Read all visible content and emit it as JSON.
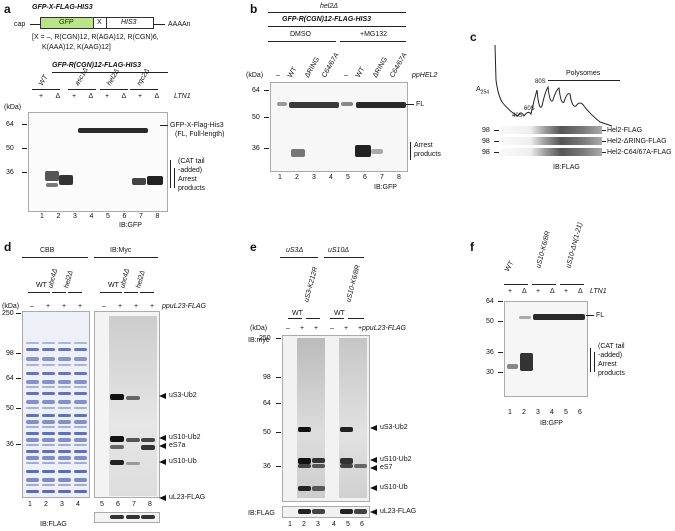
{
  "panels": {
    "a": {
      "letter": "a",
      "construct_title": "GFP-X-FLAG-HIS3",
      "cap": "cap",
      "gfp": "GFP",
      "x": "X",
      "his3": "HIS3",
      "polyA": "AAAAn",
      "x_def1": "[X = –, R(CGN)12, R(AGA)12, R(CGN)6,",
      "x_def2": "K(AAA)12, K(AAG)12]",
      "blot_title": "GFP-R(CGN)12-FLAG-HIS3",
      "strains": [
        "WT",
        "asc1Δ",
        "hel2Δ",
        "rqc2Δ"
      ],
      "ltn1_label": "LTN1",
      "ltn1_signs": [
        "+",
        "Δ",
        "+",
        "Δ",
        "+",
        "Δ",
        "+",
        "Δ"
      ],
      "kda": "(kDa)",
      "markers": [
        "64",
        "50",
        "36"
      ],
      "fl_label1": "GFP-X-Flag-His3",
      "fl_label2": "(FL, Full-length)",
      "cat_label1": "(CAT tail",
      "cat_label2": "-added)",
      "arrest1": "Arrest",
      "arrest2": "products",
      "lanes": [
        "1",
        "2",
        "3",
        "4",
        "5",
        "6",
        "7",
        "8"
      ],
      "ib": "IB:GFP"
    },
    "b": {
      "letter": "b",
      "strain": "hel2Δ",
      "blot_title": "GFP-R(CGN)12-FLAG-HIS3",
      "dmso": "DMSO",
      "mg132": "+MG132",
      "kda": "(kDa)",
      "plasmids": [
        "–",
        "WT",
        "ΔRING",
        "C64/67A",
        "–",
        "WT",
        "ΔRING",
        "C64/67A"
      ],
      "phel2": "pHEL2",
      "markers": [
        "64",
        "50",
        "36"
      ],
      "fl": "FL",
      "arrest1": "Arrest",
      "arrest2": "products",
      "lanes": [
        "1",
        "2",
        "3",
        "4",
        "5",
        "6",
        "7",
        "8"
      ],
      "ib": "IB:GFP"
    },
    "c": {
      "letter": "c",
      "a254": "A254",
      "s40": "40S",
      "s60": "60S",
      "s80": "80S",
      "polysomes": "Polysomes",
      "markers": [
        "98",
        "98",
        "98"
      ],
      "rows": [
        "Hel2-FLAG",
        "Hel2-ΔRING-FLAG",
        "Hel2-C64/67A-FLAG"
      ],
      "ib": "IB:FLAG"
    },
    "d": {
      "letter": "d",
      "cbb": "CBB",
      "ibmyc": "IB:Myc",
      "strains": [
        "WT",
        "ubc4Δ",
        "hel2Δ"
      ],
      "kda": "(kDa)",
      "signs": [
        "–",
        "+",
        "+",
        "+",
        "–",
        "+",
        "+",
        "+"
      ],
      "pul23": "puL23-FLAG",
      "markers": [
        "250",
        "98",
        "64",
        "50",
        "36"
      ],
      "labels": [
        "uS3-Ub2",
        "uS10-Ub2",
        "eS7a",
        "uS10-Ub",
        "uL23-FLAG"
      ],
      "lanes": [
        "1",
        "2",
        "3",
        "4",
        "5",
        "6",
        "7",
        "8"
      ],
      "ib": "IB:FLAG"
    },
    "e": {
      "letter": "e",
      "us3": "uS3Δ",
      "us10": "uS10Δ",
      "strains": [
        "WT",
        "uS3-K212R",
        "WT",
        "uS10-K6/8R"
      ],
      "kda": "(kDa)",
      "signs": [
        "–",
        "+",
        "+",
        "–",
        "+",
        "+"
      ],
      "pul23": "puL23-FLAG",
      "ibmyc": "IB:myc",
      "markers": [
        "250",
        "98",
        "64",
        "50",
        "36"
      ],
      "labels": [
        "uS3-Ub2",
        "uS10-Ub2",
        "eS7",
        "uS10-Ub",
        "uL23-FLAG"
      ],
      "ibflag": "IB:FLAG",
      "lanes": [
        "1",
        "2",
        "3",
        "4",
        "5",
        "6"
      ]
    },
    "f": {
      "letter": "f",
      "strains": [
        "WT",
        "uS10-K6/8R",
        "uS10-ΔN(1-21)"
      ],
      "signs": [
        "+",
        "Δ",
        "+",
        "Δ",
        "+",
        "Δ"
      ],
      "ltn1": "LTN1",
      "markers": [
        "64",
        "50",
        "36",
        "30"
      ],
      "fl": "FL",
      "cat1": "(CAT tail",
      "cat2": "-added)",
      "arrest1": "Arrest",
      "arrest2": "products",
      "lanes": [
        "1",
        "2",
        "3",
        "4",
        "5",
        "6"
      ],
      "ib": "IB:GFP"
    }
  },
  "colors": {
    "gfp_box": "#b9e48a",
    "cbb": "#3b4fa0",
    "band": "#1a1a1a"
  }
}
